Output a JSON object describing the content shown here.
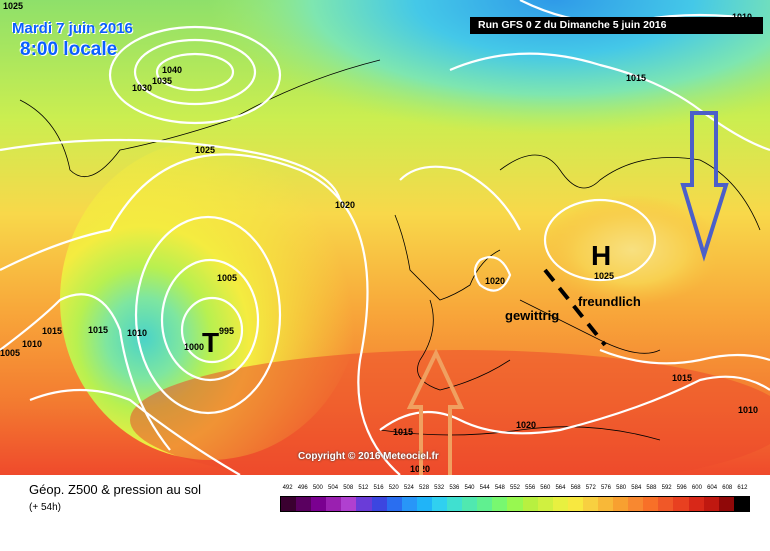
{
  "header": {
    "date": "Mardi 7 juin 2016",
    "hour": "8:00 locale",
    "run": "Run GFS 0 Z du Dimanche 5 juin 2016"
  },
  "copyright": "Copyright © 2016 Meteociel.fr",
  "footer": {
    "title": "Géop. Z500 & pression au sol",
    "subtitle": "(+ 54h)"
  },
  "systems": {
    "low": "T",
    "high": "H",
    "low_value": "995",
    "high_value": "1025"
  },
  "annotations": {
    "storm": "gewittrig",
    "fair": "freundlich"
  },
  "colors": {
    "low_arrow": "#4b5fc9",
    "high_arrow": "#f0a060"
  },
  "isobars": [
    "1040",
    "1035",
    "1030",
    "1025",
    "1020",
    "1015",
    "1010",
    "1005",
    "1000",
    "995",
    "1015",
    "1010",
    "1020",
    "1025",
    "1015",
    "1010",
    "1015",
    "1015",
    "1020",
    "1020",
    "1005",
    "1010",
    "1025"
  ],
  "scale": {
    "values": [
      "492",
      "496",
      "500",
      "504",
      "508",
      "512",
      "516",
      "520",
      "524",
      "528",
      "532",
      "536",
      "540",
      "544",
      "548",
      "552",
      "556",
      "560",
      "564",
      "568",
      "572",
      "576",
      "580",
      "584",
      "588",
      "592",
      "596",
      "600",
      "604",
      "608",
      "612"
    ],
    "colors": [
      "#3a0030",
      "#5a0060",
      "#7a0090",
      "#9a20b0",
      "#b040d0",
      "#6a3cd8",
      "#3c46e0",
      "#2a6ef0",
      "#2896f8",
      "#20b4f8",
      "#30d0f0",
      "#40e0d0",
      "#50e8b0",
      "#60f090",
      "#78f870",
      "#98f850",
      "#b8f040",
      "#d0f040",
      "#e8f040",
      "#f8e840",
      "#f8d040",
      "#f8b838",
      "#f8a030",
      "#f88830",
      "#f87028",
      "#f05828",
      "#e84020",
      "#d82818",
      "#c01810",
      "#900808",
      "#000000"
    ]
  }
}
